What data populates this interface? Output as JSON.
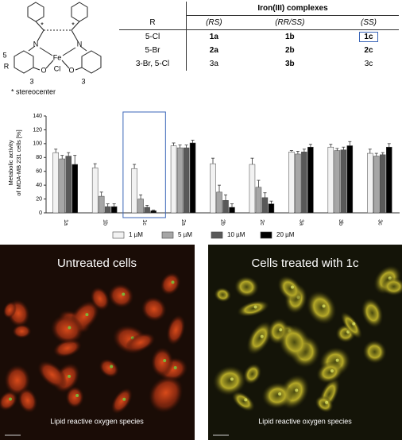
{
  "structure": {
    "atoms": [
      "N",
      "N",
      "Fe",
      "O",
      "O",
      "Cl",
      "*",
      "*",
      "5",
      "R",
      "3",
      "3"
    ],
    "legend": "* stereocenter"
  },
  "table": {
    "group_header": "Iron(III) complexes",
    "header": [
      "R",
      "(RS)",
      "(RR/SS)",
      "(SS)"
    ],
    "rows": [
      [
        "5-Cl",
        "1a",
        "1b",
        "1c"
      ],
      [
        "5-Br",
        "2a",
        "2b",
        "2c"
      ],
      [
        "3-Br, 5-Cl",
        "3a",
        "3b",
        "3c"
      ]
    ]
  },
  "chart_data": {
    "type": "bar",
    "y_label": [
      "Metabolic activity",
      "of MDA-MB 231 cells [%]"
    ],
    "categories": [
      "1a",
      "1b",
      "1c",
      "2a",
      "2b",
      "2c",
      "3a",
      "3b",
      "3c"
    ],
    "series": [
      {
        "name": "1 µM",
        "color": "#f2f2f2",
        "values": [
          87,
          65,
          64,
          97,
          71,
          70,
          88,
          95,
          86
        ],
        "errors": [
          5,
          6,
          6,
          4,
          8,
          9,
          2,
          4,
          6
        ]
      },
      {
        "name": "5 µM",
        "color": "#a6a6a6",
        "values": [
          78,
          24,
          20,
          94,
          30,
          37,
          85,
          90,
          82
        ],
        "errors": [
          5,
          6,
          6,
          4,
          10,
          10,
          4,
          3,
          4
        ]
      },
      {
        "name": "10 µM",
        "color": "#595959",
        "values": [
          82,
          9,
          8,
          94,
          18,
          22,
          88,
          91,
          84
        ],
        "errors": [
          5,
          4,
          3,
          4,
          8,
          7,
          4,
          4,
          3
        ]
      },
      {
        "name": "20 µM",
        "color": "#000000",
        "values": [
          70,
          9,
          3,
          101,
          8,
          13,
          95,
          97,
          95
        ],
        "errors": [
          13,
          4,
          1,
          4,
          5,
          4,
          4,
          6,
          5
        ]
      }
    ],
    "ylim": [
      0,
      140
    ],
    "yticks": [
      0,
      20,
      40,
      60,
      80,
      100,
      120,
      140
    ]
  },
  "images": [
    {
      "title": "Untreated cells",
      "caption": "Lipid reactive oxygen species"
    },
    {
      "title": "Cells treated with 1c",
      "caption": "Lipid reactive oxygen species"
    }
  ]
}
